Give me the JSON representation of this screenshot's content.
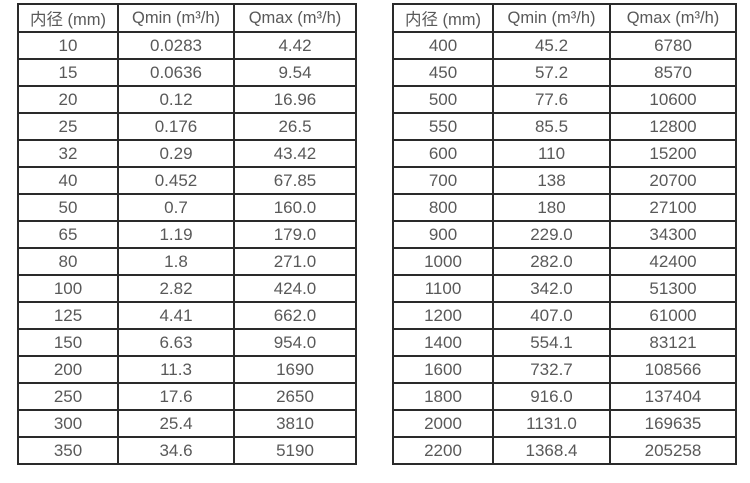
{
  "page": {
    "background": "#ffffff",
    "border_color": "#2a2a2a",
    "text_color": "#595959"
  },
  "chart_data": [
    {
      "type": "table",
      "columns": [
        "内径 (mm)",
        "Qmin (m³/h)",
        "Qmax (m³/h)"
      ],
      "rows": [
        [
          "10",
          "0.0283",
          "4.42"
        ],
        [
          "15",
          "0.0636",
          "9.54"
        ],
        [
          "20",
          "0.12",
          "16.96"
        ],
        [
          "25",
          "0.176",
          "26.5"
        ],
        [
          "32",
          "0.29",
          "43.42"
        ],
        [
          "40",
          "0.452",
          "67.85"
        ],
        [
          "50",
          "0.7",
          "160.0"
        ],
        [
          "65",
          "1.19",
          "179.0"
        ],
        [
          "80",
          "1.8",
          "271.0"
        ],
        [
          "100",
          "2.82",
          "424.0"
        ],
        [
          "125",
          "4.41",
          "662.0"
        ],
        [
          "150",
          "6.63",
          "954.0"
        ],
        [
          "200",
          "11.3",
          "1690"
        ],
        [
          "250",
          "17.6",
          "2650"
        ],
        [
          "300",
          "25.4",
          "3810"
        ],
        [
          "350",
          "34.6",
          "5190"
        ]
      ]
    },
    {
      "type": "table",
      "columns": [
        "内径 (mm)",
        "Qmin (m³/h)",
        "Qmax (m³/h)"
      ],
      "rows": [
        [
          "400",
          "45.2",
          "6780"
        ],
        [
          "450",
          "57.2",
          "8570"
        ],
        [
          "500",
          "77.6",
          "10600"
        ],
        [
          "550",
          "85.5",
          "12800"
        ],
        [
          "600",
          "110",
          "15200"
        ],
        [
          "700",
          "138",
          "20700"
        ],
        [
          "800",
          "180",
          "27100"
        ],
        [
          "900",
          "229.0",
          "34300"
        ],
        [
          "1000",
          "282.0",
          "42400"
        ],
        [
          "1100",
          "342.0",
          "51300"
        ],
        [
          "1200",
          "407.0",
          "61000"
        ],
        [
          "1400",
          "554.1",
          "83121"
        ],
        [
          "1600",
          "732.7",
          "108566"
        ],
        [
          "1800",
          "916.0",
          "137404"
        ],
        [
          "2000",
          "1131.0",
          "169635"
        ],
        [
          "2200",
          "1368.4",
          "205258"
        ]
      ]
    }
  ]
}
